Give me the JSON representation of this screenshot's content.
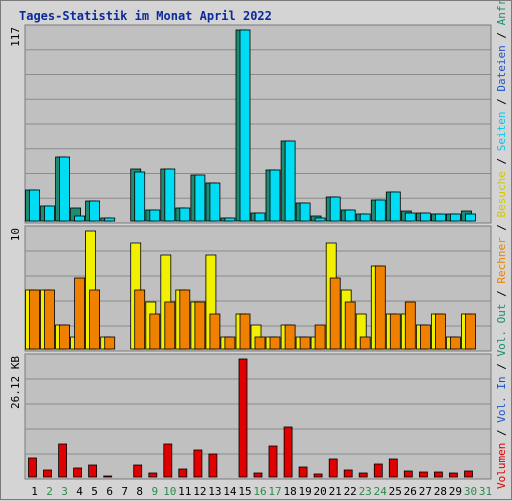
{
  "colors": {
    "title": "#0b2a9c",
    "weekday": "#000000",
    "weekend": "#2b8a4e",
    "panel_bg": "#c0c0c0",
    "grid": "#8c8c8c",
    "anfragen": "#1c8c74",
    "dateien": "#00dcf4",
    "seiten": "#00c8f0",
    "besuche": "#f0f000",
    "rechner": "#f08000",
    "volumen": "#e00000"
  },
  "chart_data": {
    "type": "bar",
    "title": "Tages-Statistik im Monat April 2022",
    "x": [
      "1",
      "2",
      "3",
      "4",
      "5",
      "6",
      "7",
      "8",
      "9",
      "10",
      "11",
      "12",
      "13",
      "14",
      "15",
      "16",
      "17",
      "18",
      "19",
      "20",
      "21",
      "22",
      "23",
      "24",
      "25",
      "26",
      "27",
      "28",
      "29",
      "30",
      "31"
    ],
    "weekend_days": [
      "2",
      "3",
      "9",
      "10",
      "16",
      "17",
      "23",
      "24",
      "30",
      "31"
    ],
    "panels": [
      {
        "name": "requests",
        "ymax_label": "117",
        "ymax": 117,
        "series": [
          {
            "name": "Anfragen",
            "color": "#1c8c74",
            "values": [
              19,
              9,
              39,
              8,
              12,
              2,
              0,
              32,
              7,
              32,
              8,
              28,
              23,
              2,
              117,
              5,
              31,
              49,
              11,
              3,
              15,
              7,
              4,
              13,
              18,
              6,
              5,
              4,
              4,
              6,
              0
            ]
          },
          {
            "name": "Dateien",
            "color": "#00dcf4",
            "values": [
              19,
              9,
              39,
              3,
              12,
              2,
              0,
              30,
              7,
              32,
              8,
              28,
              23,
              2,
              117,
              5,
              31,
              49,
              11,
              2,
              15,
              7,
              4,
              13,
              18,
              5,
              5,
              4,
              4,
              4,
              0
            ]
          }
        ]
      },
      {
        "name": "visits",
        "ymax_label": "10",
        "ymax": 10,
        "series": [
          {
            "name": "Besuche",
            "color": "#f0f000",
            "values": [
              5,
              5,
              2,
              1,
              10,
              1,
              0,
              9,
              4,
              8,
              5,
              4,
              8,
              1,
              3,
              2,
              1,
              2,
              1,
              1,
              9,
              5,
              3,
              7,
              3,
              3,
              2,
              3,
              1,
              3,
              0
            ]
          },
          {
            "name": "Rechner",
            "color": "#f08000",
            "values": [
              5,
              5,
              2,
              6,
              5,
              1,
              0,
              5,
              3,
              4,
              5,
              4,
              3,
              1,
              3,
              1,
              1,
              2,
              1,
              2,
              6,
              4,
              1,
              7,
              3,
              4,
              2,
              3,
              1,
              3,
              0
            ]
          }
        ]
      },
      {
        "name": "volume",
        "ymax_label": "26.12 KB",
        "ymax": 26.12,
        "series": [
          {
            "name": "Volumen",
            "color": "#e00000",
            "values": [
              4.2,
              1.5,
              7.3,
              2.0,
              2.6,
              0.3,
              0,
              2.6,
              0.9,
              7.2,
              1.7,
              6.0,
              5.0,
              0,
              26.12,
              0.9,
              6.9,
              11.0,
              2.3,
              0.6,
              4.0,
              1.5,
              0.8,
              2.8,
              3.9,
              1.4,
              1.2,
              1.0,
              0.8,
              1.4,
              0
            ]
          }
        ]
      }
    ],
    "right_label_segments": [
      {
        "text": "Volumen",
        "color": "#e00000"
      },
      {
        "text": " / ",
        "color": "#000000"
      },
      {
        "text": "Vol. In",
        "color": "#1c54c8"
      },
      {
        "text": " / ",
        "color": "#000000"
      },
      {
        "text": "Vol. Out",
        "color": "#1c8c74"
      },
      {
        "text": " / ",
        "color": "#000000"
      },
      {
        "text": "Rechner",
        "color": "#f08000"
      },
      {
        "text": " / ",
        "color": "#000000"
      },
      {
        "text": "Besuche",
        "color": "#d4c800"
      },
      {
        "text": " / ",
        "color": "#000000"
      },
      {
        "text": "Seiten",
        "color": "#00c8f0"
      },
      {
        "text": " / ",
        "color": "#000000"
      },
      {
        "text": "Dateien",
        "color": "#1c54c8"
      },
      {
        "text": " / ",
        "color": "#000000"
      },
      {
        "text": "Anfragen",
        "color": "#1c8c74"
      }
    ]
  }
}
